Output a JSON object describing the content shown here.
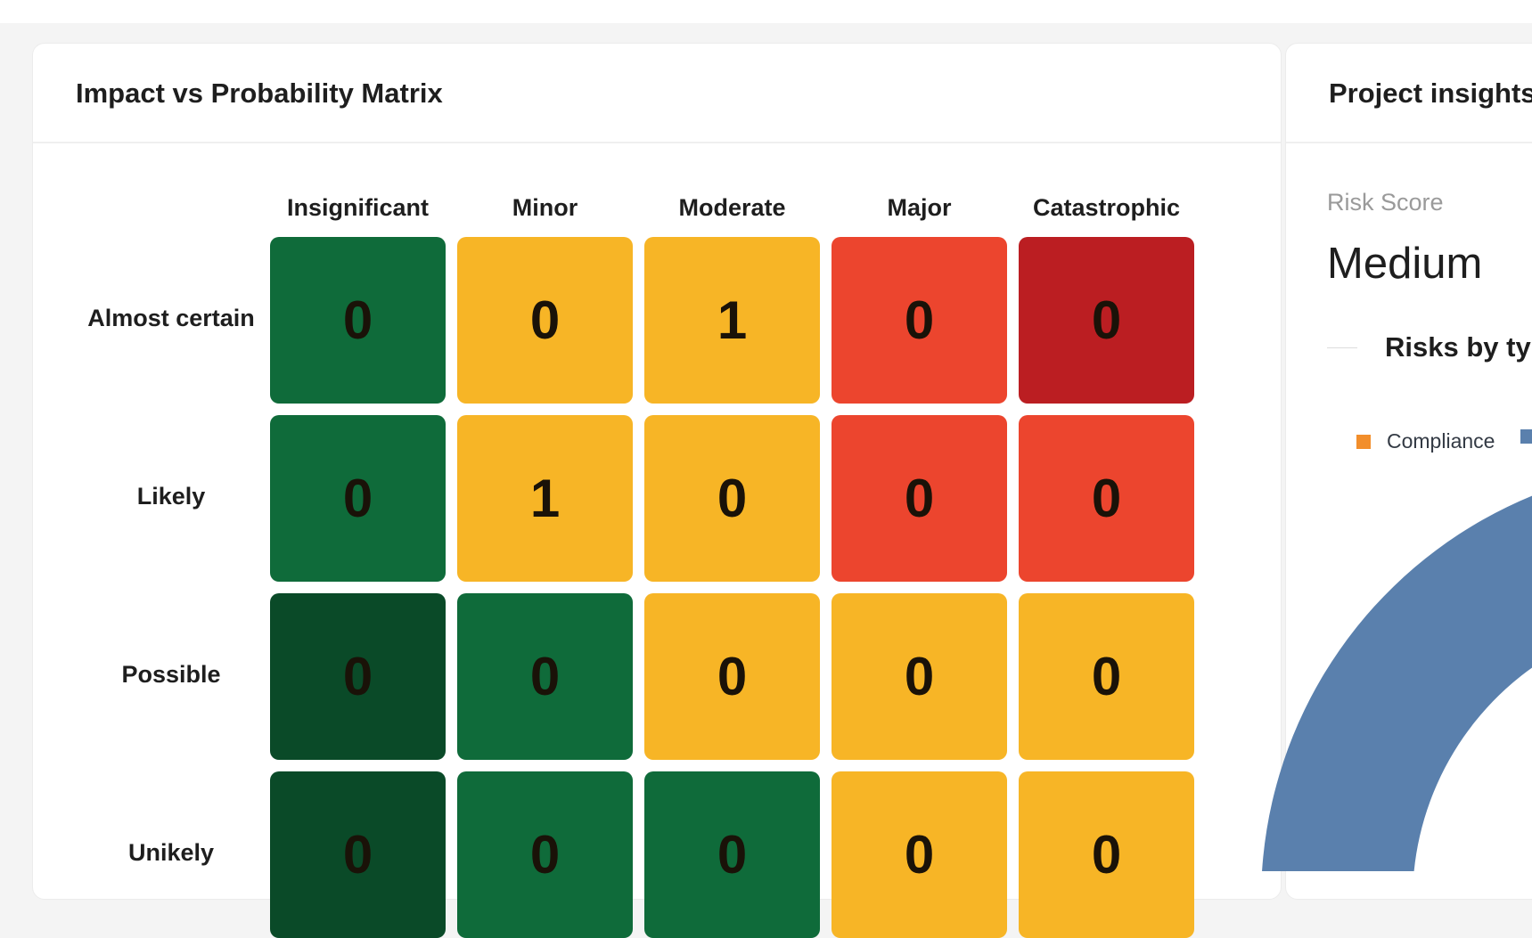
{
  "matrix": {
    "title": "Impact vs Probability Matrix",
    "impact_levels": [
      "Insignificant",
      "Minor",
      "Moderate",
      "Major",
      "Catastrophic"
    ],
    "rows": [
      {
        "label": "Almost certain",
        "values": [
          0,
          0,
          1,
          0,
          0
        ],
        "levels": [
          "green",
          "yellow",
          "yellow",
          "red",
          "darkred"
        ]
      },
      {
        "label": "Likely",
        "values": [
          0,
          1,
          0,
          0,
          0
        ],
        "levels": [
          "green",
          "yellow",
          "yellow",
          "red",
          "red"
        ]
      },
      {
        "label": "Possible",
        "values": [
          0,
          0,
          0,
          0,
          0
        ],
        "levels": [
          "darkgreen",
          "green",
          "yellow",
          "yellow",
          "yellow"
        ]
      },
      {
        "label": "Unikely",
        "values": [
          0,
          0,
          0,
          0,
          0
        ],
        "levels": [
          "darkgreen",
          "green",
          "green",
          "yellow",
          "yellow"
        ]
      }
    ],
    "colors": {
      "darkgreen": "#0a4a28",
      "green": "#0f6b3a",
      "yellow": "#f7b526",
      "red": "#ec452e",
      "darkred": "#bb1e22"
    }
  },
  "insights": {
    "title": "Project insights",
    "risk_score_label": "Risk Score",
    "risk_score_value": "Medium",
    "chart": {
      "title": "Risks by type",
      "type": "pie",
      "legend": [
        {
          "name": "Compliance",
          "color": "#f28e2b"
        },
        {
          "name": "",
          "color": "#5a80ad"
        }
      ]
    }
  }
}
